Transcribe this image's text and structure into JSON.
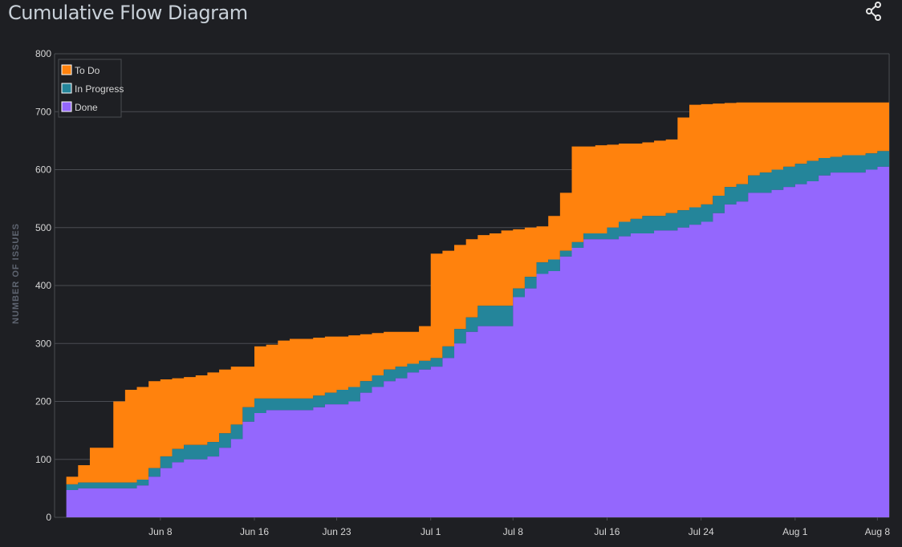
{
  "title": "Cumulative Flow Diagram",
  "share_icon": "share-icon",
  "colors": {
    "background": "#1e1f23",
    "grid": "#4a4c52",
    "axis_text": "#d6d6d6",
    "ylabel_text": "#5e6470",
    "todo": "#ff820d",
    "in_progress": "#24859a",
    "done": "#9467fd"
  },
  "chart_data": {
    "type": "area",
    "stacked": true,
    "step": true,
    "title": "Cumulative Flow Diagram",
    "xlabel": "",
    "ylabel": "NUMBER OF ISSUES",
    "ylim": [
      0,
      800
    ],
    "xlim": [
      "2024-05-30",
      "2024-08-09"
    ],
    "grid": true,
    "legend_position": "top-left",
    "y_ticks": [
      "0",
      "100",
      "200",
      "300",
      "400",
      "500",
      "600",
      "700",
      "800"
    ],
    "x_ticks": [
      {
        "date": "2024-06-08",
        "label": "Jun 8"
      },
      {
        "date": "2024-06-16",
        "label": "Jun 16"
      },
      {
        "date": "2024-06-23",
        "label": "Jun 23"
      },
      {
        "date": "2024-07-01",
        "label": "Jul 1"
      },
      {
        "date": "2024-07-08",
        "label": "Jul 8"
      },
      {
        "date": "2024-07-16",
        "label": "Jul 16"
      },
      {
        "date": "2024-07-24",
        "label": "Jul 24"
      },
      {
        "date": "2024-08-01",
        "label": "Aug 1"
      },
      {
        "date": "2024-08-08",
        "label": "Aug 8"
      }
    ],
    "x": [
      "2024-05-31",
      "2024-06-01",
      "2024-06-02",
      "2024-06-03",
      "2024-06-04",
      "2024-06-05",
      "2024-06-06",
      "2024-06-07",
      "2024-06-08",
      "2024-06-09",
      "2024-06-10",
      "2024-06-11",
      "2024-06-12",
      "2024-06-13",
      "2024-06-14",
      "2024-06-15",
      "2024-06-16",
      "2024-06-17",
      "2024-06-18",
      "2024-06-19",
      "2024-06-20",
      "2024-06-21",
      "2024-06-22",
      "2024-06-23",
      "2024-06-24",
      "2024-06-25",
      "2024-06-26",
      "2024-06-27",
      "2024-06-28",
      "2024-06-29",
      "2024-06-30",
      "2024-07-01",
      "2024-07-02",
      "2024-07-03",
      "2024-07-04",
      "2024-07-05",
      "2024-07-06",
      "2024-07-07",
      "2024-07-08",
      "2024-07-09",
      "2024-07-10",
      "2024-07-11",
      "2024-07-12",
      "2024-07-13",
      "2024-07-14",
      "2024-07-15",
      "2024-07-16",
      "2024-07-17",
      "2024-07-18",
      "2024-07-19",
      "2024-07-20",
      "2024-07-21",
      "2024-07-22",
      "2024-07-23",
      "2024-07-24",
      "2024-07-25",
      "2024-07-26",
      "2024-07-27",
      "2024-07-28",
      "2024-07-29",
      "2024-07-30",
      "2024-07-31",
      "2024-08-01",
      "2024-08-02",
      "2024-08-03",
      "2024-08-04",
      "2024-08-05",
      "2024-08-06",
      "2024-08-07",
      "2024-08-08",
      "2024-08-09"
    ],
    "series": [
      {
        "name": "Done",
        "values": [
          47,
          50,
          50,
          50,
          50,
          50,
          55,
          70,
          85,
          95,
          100,
          100,
          105,
          120,
          135,
          165,
          180,
          185,
          185,
          185,
          185,
          190,
          195,
          195,
          200,
          215,
          225,
          235,
          240,
          250,
          255,
          260,
          275,
          300,
          320,
          330,
          330,
          330,
          380,
          395,
          420,
          425,
          450,
          465,
          480,
          480,
          480,
          485,
          490,
          490,
          495,
          495,
          500,
          505,
          510,
          525,
          540,
          545,
          560,
          560,
          565,
          570,
          575,
          580,
          590,
          595,
          595,
          595,
          600,
          605,
          605
        ]
      },
      {
        "name": "In Progress",
        "values": [
          57,
          60,
          60,
          60,
          60,
          60,
          65,
          85,
          105,
          118,
          125,
          125,
          130,
          145,
          160,
          190,
          205,
          205,
          205,
          205,
          205,
          210,
          215,
          220,
          225,
          235,
          245,
          255,
          260,
          265,
          270,
          275,
          295,
          325,
          345,
          365,
          365,
          365,
          395,
          415,
          440,
          445,
          460,
          475,
          490,
          490,
          500,
          510,
          515,
          520,
          520,
          525,
          530,
          535,
          540,
          555,
          570,
          575,
          590,
          595,
          600,
          605,
          610,
          615,
          620,
          622,
          625,
          625,
          628,
          632,
          632
        ]
      },
      {
        "name": "To Do",
        "values": [
          70,
          90,
          120,
          120,
          200,
          220,
          225,
          235,
          238,
          240,
          242,
          245,
          250,
          255,
          260,
          260,
          295,
          298,
          305,
          308,
          308,
          310,
          312,
          312,
          314,
          316,
          318,
          320,
          320,
          320,
          330,
          455,
          460,
          470,
          480,
          487,
          490,
          495,
          497,
          500,
          502,
          520,
          560,
          640,
          640,
          642,
          643,
          645,
          645,
          647,
          650,
          652,
          690,
          712,
          713,
          714,
          715,
          716,
          716,
          716,
          716,
          716,
          716,
          716,
          716,
          716,
          716,
          716,
          716,
          716,
          716
        ]
      }
    ],
    "legend": [
      "To Do",
      "In Progress",
      "Done"
    ]
  }
}
